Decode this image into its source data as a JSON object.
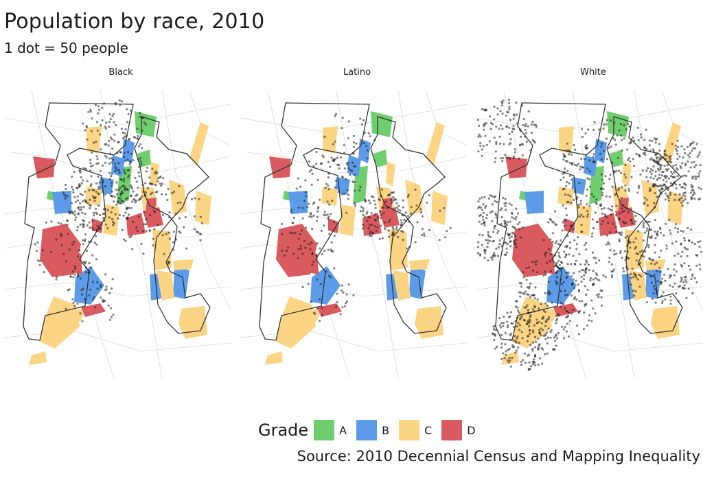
{
  "title": "Population by race, 2010",
  "subtitle": "1 dot = 50 people",
  "panels": [
    {
      "label": "Black",
      "key": "black",
      "density": 0.8,
      "hotspot": "center"
    },
    {
      "label": "Latino",
      "key": "latino",
      "density": 0.6,
      "hotspot": "mixed"
    },
    {
      "label": "White",
      "key": "white",
      "density": 1.0,
      "hotspot": "periphery"
    }
  ],
  "legend": {
    "title": "Grade",
    "items": [
      {
        "label": "A",
        "color": "#6fcf6f"
      },
      {
        "label": "B",
        "color": "#5b9be8"
      },
      {
        "label": "C",
        "color": "#fbd484"
      },
      {
        "label": "D",
        "color": "#d95b5f"
      }
    ]
  },
  "source": "Source: 2010 Decennial Census and Mapping Inequality",
  "colors": {
    "dot": "#1a1a1a",
    "boundary": "#333333",
    "road": "#d9d9d9"
  }
}
